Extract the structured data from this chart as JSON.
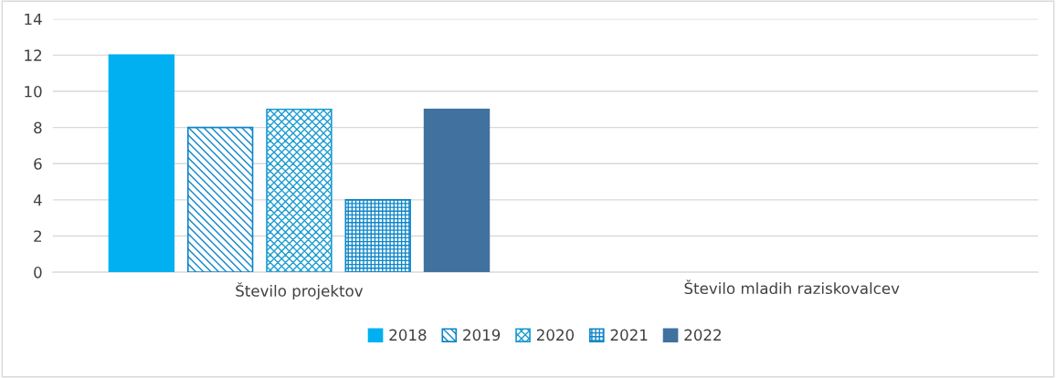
{
  "chart_data": {
    "type": "bar",
    "categories": [
      "Število projektov",
      "Število mladih raziskovalcev"
    ],
    "series": [
      {
        "name": "2018",
        "color": "#00b0f0",
        "values": [
          12,
          null
        ]
      },
      {
        "name": "2019",
        "color": "#0e86c8",
        "values": [
          8,
          null
        ]
      },
      {
        "name": "2020",
        "color": "#1a9bd0",
        "values": [
          9,
          null
        ]
      },
      {
        "name": "2021",
        "color": "#0e86c8",
        "values": [
          4,
          null
        ]
      },
      {
        "name": "2022",
        "color": "#41729f",
        "values": [
          9,
          null
        ]
      }
    ],
    "ylim": [
      0,
      14
    ],
    "yticks": [
      0,
      2,
      4,
      6,
      8,
      10,
      12,
      14
    ],
    "grid": "y",
    "legend": "bottom"
  }
}
